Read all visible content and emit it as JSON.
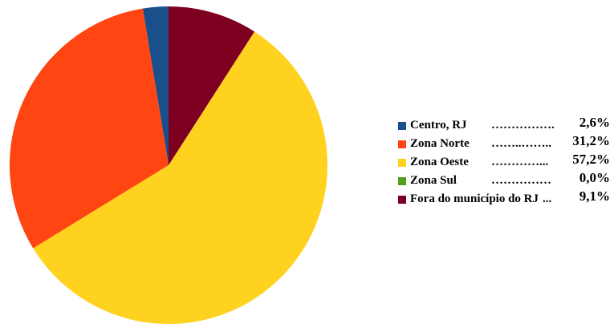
{
  "chart_data": {
    "type": "pie",
    "categories": [
      "Centro, RJ",
      "Zona Norte",
      "Zona Oeste",
      "Zona Sul",
      "Fora do município do RJ"
    ],
    "leaders": [
      "…………….",
      "……..……..",
      "…………...",
      "……………",
      "..."
    ],
    "values": [
      2.6,
      31.2,
      57.2,
      0.0,
      9.1
    ],
    "value_labels": [
      "2,6%",
      "31,2%",
      "57,2%",
      "0,0%",
      "9,1%"
    ],
    "colors": [
      "#1b4f8c",
      "#ff4612",
      "#ffd21f",
      "#579d1c",
      "#7e0021"
    ],
    "start_angle": 0,
    "direction": "counterclockwise",
    "legend": "right"
  }
}
